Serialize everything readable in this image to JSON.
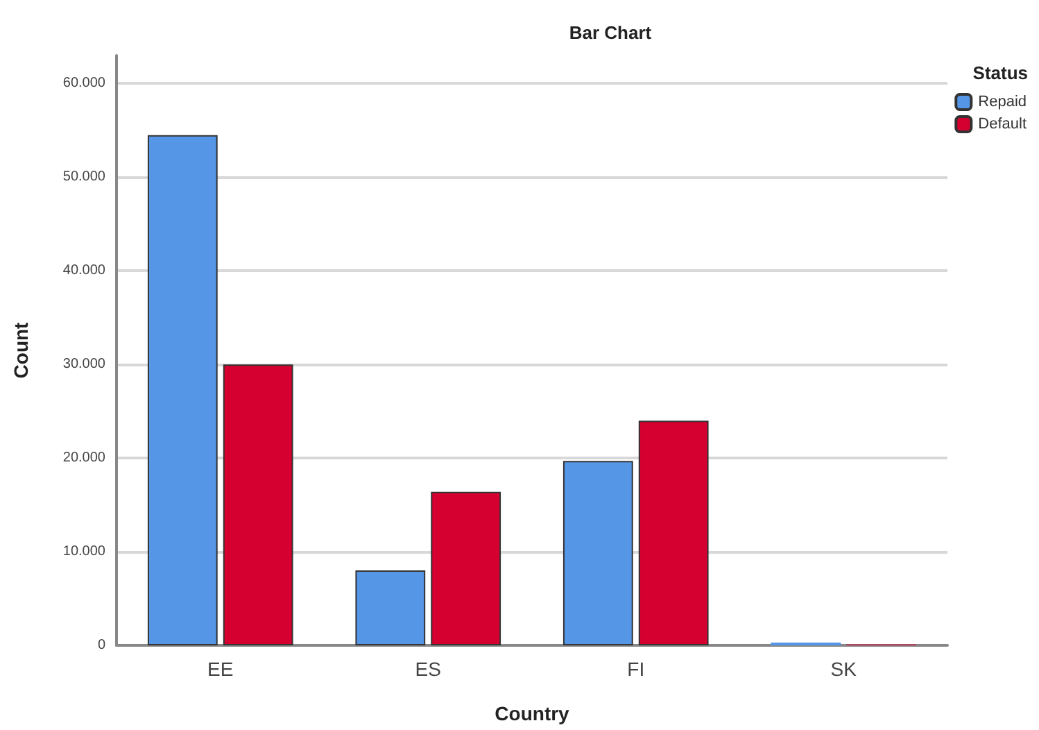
{
  "chart_data": {
    "type": "bar",
    "title": "Bar Chart",
    "xlabel": "Country",
    "ylabel": "Count",
    "legend_title": "Status",
    "categories": [
      "EE",
      "ES",
      "FI",
      "SK"
    ],
    "series": [
      {
        "name": "Repaid",
        "color": "#5596e6",
        "values": [
          54500,
          8000,
          19700,
          300
        ]
      },
      {
        "name": "Default",
        "color": "#d60030",
        "values": [
          30000,
          16400,
          24000,
          100
        ]
      }
    ],
    "ylim": [
      0,
      63000
    ],
    "yticks": [
      0,
      {
        "value": 10000,
        "label": "10.000"
      },
      {
        "value": 20000,
        "label": "20.000"
      },
      {
        "value": 30000,
        "label": "30.000"
      },
      {
        "value": 40000,
        "label": "40.000"
      },
      {
        "value": 50000,
        "label": "50.000"
      },
      {
        "value": 60000,
        "label": "60.000"
      }
    ],
    "grid": "y",
    "legend": "top right"
  }
}
